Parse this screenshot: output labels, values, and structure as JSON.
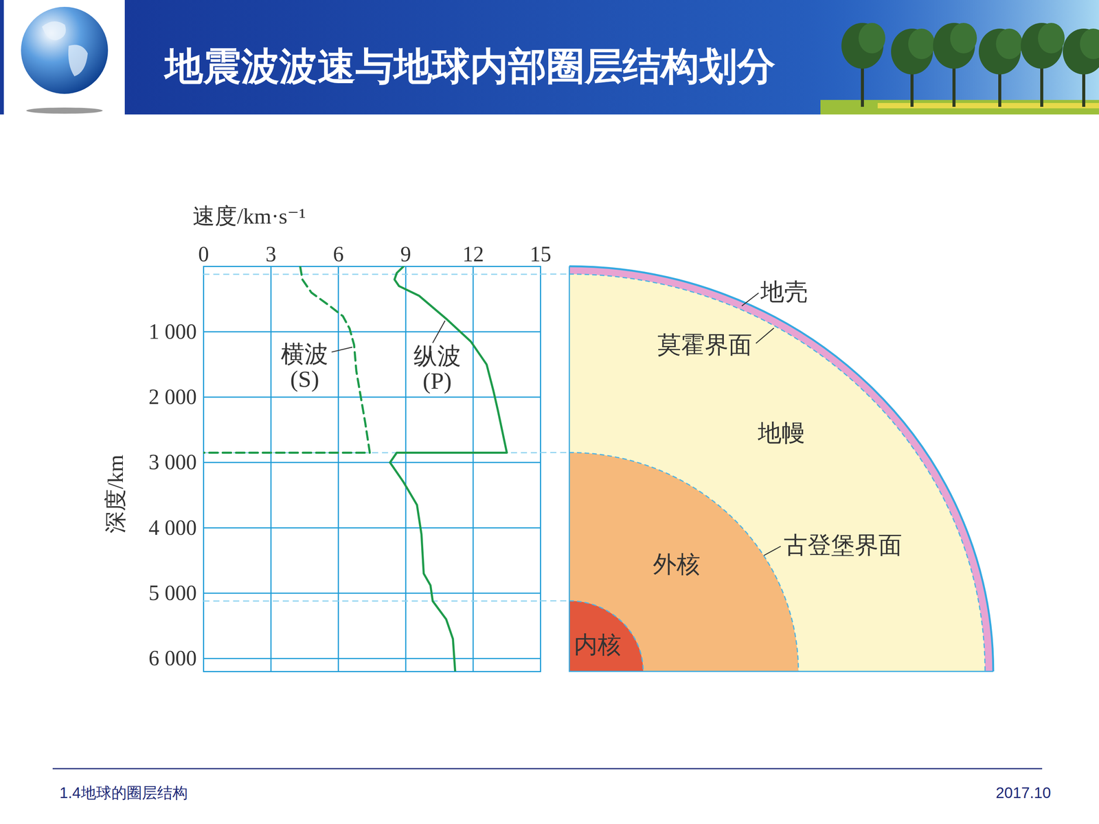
{
  "header": {
    "title": "地震波波速与地球内部圈层结构划分"
  },
  "chart_data": {
    "type": "line",
    "x_label": "速度/km·s⁻¹",
    "y_label": "深度/km",
    "xlim": [
      0,
      15
    ],
    "xticks": [
      0,
      3,
      6,
      9,
      12,
      15
    ],
    "ylim": [
      0,
      6200
    ],
    "yticks": [
      {
        "value": 1000,
        "label": "1 000"
      },
      {
        "value": 2000,
        "label": "2 000"
      },
      {
        "value": 3000,
        "label": "3 000"
      },
      {
        "value": 4000,
        "label": "4 000"
      },
      {
        "value": 5000,
        "label": "5 000"
      },
      {
        "value": 6000,
        "label": "6 000"
      }
    ],
    "grid": true,
    "series": [
      {
        "name": "横波(S)",
        "color": "#1e9b4b",
        "line_style": "dashed",
        "x": [
          4.3,
          4.4,
          4.8,
          5.6,
          6.2,
          6.5,
          6.7,
          6.8,
          7.0,
          7.2,
          7.4,
          0
        ],
        "y": [
          0,
          200,
          400,
          600,
          760,
          950,
          1200,
          1600,
          2000,
          2400,
          2850,
          2850
        ]
      },
      {
        "name": "纵波(P)",
        "color": "#1e9b4b",
        "line_style": "solid",
        "x": [
          8.9,
          8.6,
          8.5,
          8.7,
          9.6,
          10.8,
          11.9,
          12.6,
          12.9,
          13.1,
          13.5,
          8.6,
          8.3,
          8.9,
          9.5,
          9.7,
          9.8,
          10.1,
          10.2,
          10.8,
          11.1,
          11.2
        ],
        "y": [
          0,
          100,
          200,
          300,
          450,
          800,
          1150,
          1500,
          1900,
          2200,
          2850,
          2850,
          3000,
          3300,
          3650,
          4100,
          4700,
          4880,
          5120,
          5400,
          5700,
          6200
        ]
      }
    ]
  },
  "diagram": {
    "layers": [
      {
        "name": "地壳",
        "color": "#e8a3d2"
      },
      {
        "name": "地幔",
        "color": "#fdf6cb"
      },
      {
        "name": "外核",
        "color": "#f6b97b"
      },
      {
        "name": "内核",
        "color": "#e3573c"
      }
    ],
    "interfaces": [
      {
        "name": "莫霍界面",
        "depth": 120
      },
      {
        "name": "古登堡界面",
        "depth": 2850
      },
      {
        "depth": 5120
      }
    ]
  },
  "footer": {
    "left": "1.4地球的圈层结构",
    "right": "2017.10"
  }
}
